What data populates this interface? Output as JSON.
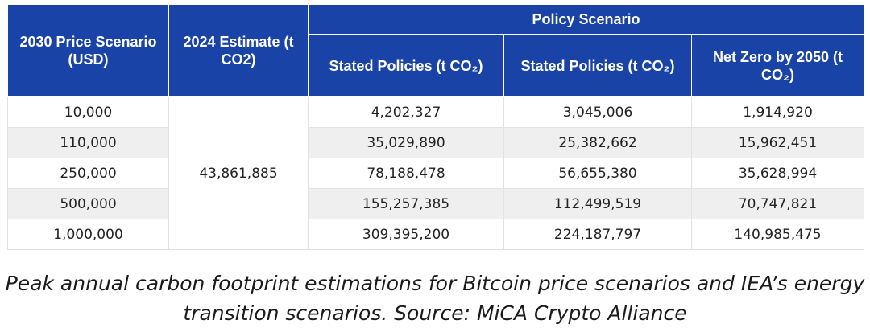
{
  "table": {
    "headers": {
      "price_scenario": "2030 Price Scenario (USD)",
      "estimate_2024": "2024 Estimate (t CO2)",
      "policy_scenario": "Policy Scenario",
      "sub": [
        "Stated Policies (t CO₂)",
        "Stated Policies (t CO₂)",
        "Net Zero by 2050 (t CO₂)"
      ]
    },
    "estimate_value": "43,861,885",
    "rows": [
      {
        "price": "10,000",
        "c1": "4,202,327",
        "c2": "3,045,006",
        "c3": "1,914,920"
      },
      {
        "price": "110,000",
        "c1": "35,029,890",
        "c2": "25,382,662",
        "c3": "15,962,451"
      },
      {
        "price": "250,000",
        "c1": "78,188,478",
        "c2": "56,655,380",
        "c3": "35,628,994"
      },
      {
        "price": "500,000",
        "c1": "155,257,385",
        "c2": "112,499,519",
        "c3": "70,747,821"
      },
      {
        "price": "1,000,000",
        "c1": "309,395,200",
        "c2": "224,187,797",
        "c3": "140,985,475"
      }
    ]
  },
  "caption": {
    "line1": "Peak annual carbon footprint estimations for Bitcoin price scenarios and IEA’s energy",
    "line2": "transition scenarios. Source: MiCA Crypto Alliance"
  },
  "colors": {
    "header_bg": "#1a43a8",
    "row_alt_bg": "#efefef"
  }
}
